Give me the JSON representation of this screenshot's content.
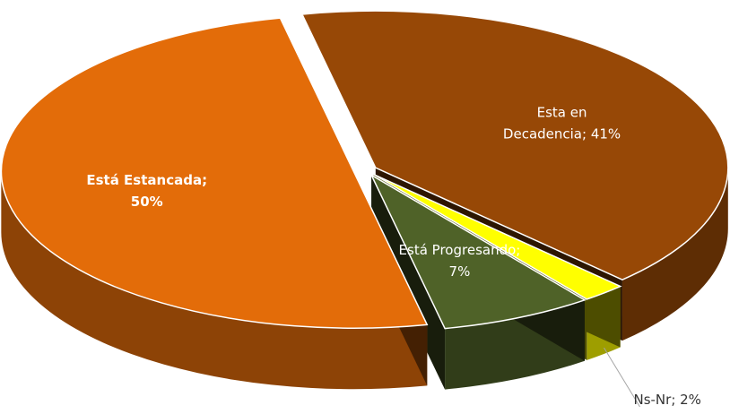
{
  "chart_data": {
    "type": "pie",
    "value_labels": [
      "Esta en Decadencia; 41%",
      "Ns-Nr; 2%",
      "Está Progresando; 7%",
      "Está Estancada; 50%"
    ],
    "values": [
      41,
      2,
      7,
      50
    ],
    "colors": [
      "#974806",
      "#ffff00",
      "#4f6228",
      "#e36c09"
    ],
    "three_d": true
  }
}
